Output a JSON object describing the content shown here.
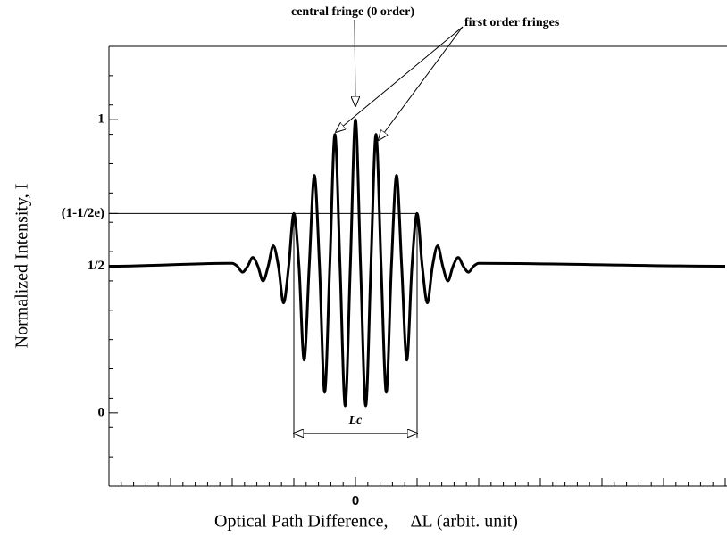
{
  "chart_data": {
    "type": "line",
    "xlabel": "Optical Path Difference,     ΔL (arbit. unit)",
    "ylabel": "Normalized Intensity, I",
    "x": [
      -48,
      -24,
      -23,
      -22,
      -21,
      -20,
      -19,
      -18,
      -17,
      -16,
      -15,
      -14,
      -13,
      -12,
      -11,
      -10,
      -9,
      -8,
      -7,
      -6,
      -5,
      -4,
      -3,
      -2,
      -1,
      0,
      1,
      2,
      3,
      4,
      5,
      6,
      7,
      8,
      9,
      10,
      11,
      12,
      13,
      14,
      15,
      16,
      17,
      18,
      19,
      20,
      21,
      22,
      23,
      24,
      72
    ],
    "series": [
      {
        "color": "#000000",
        "values": [
          0.5,
          0.51,
          0.5,
          0.48,
          0.5,
          0.53,
          0.5,
          0.45,
          0.5,
          0.57,
          0.5,
          0.375,
          0.5,
          0.68,
          0.5,
          0.18,
          0.5,
          0.81,
          0.5,
          0.07,
          0.5,
          0.95,
          0.5,
          0.024,
          0.5,
          1.0,
          0.5,
          0.024,
          0.5,
          0.95,
          0.5,
          0.07,
          0.5,
          0.81,
          0.5,
          0.18,
          0.5,
          0.68,
          0.5,
          0.375,
          0.5,
          0.57,
          0.5,
          0.45,
          0.5,
          0.53,
          0.5,
          0.48,
          0.5,
          0.51,
          0.5
        ]
      }
    ],
    "xlim": [
      -48,
      72
    ],
    "ylim": [
      -0.25,
      1.25
    ],
    "xticks": [
      0
    ],
    "yticks": [
      0,
      {
        "value": 0.5,
        "label": "1/2"
      },
      {
        "value": 0.68,
        "label": "(1-1/2e)"
      },
      1
    ],
    "xminor_step": 2.4,
    "yminor_step": 0.1,
    "annotations": {
      "central": "central fringe (0 order)",
      "first": "first order fringes",
      "lc": {
        "text": "Lc",
        "x": [
          -12,
          12
        ],
        "y": -0.07
      }
    }
  }
}
